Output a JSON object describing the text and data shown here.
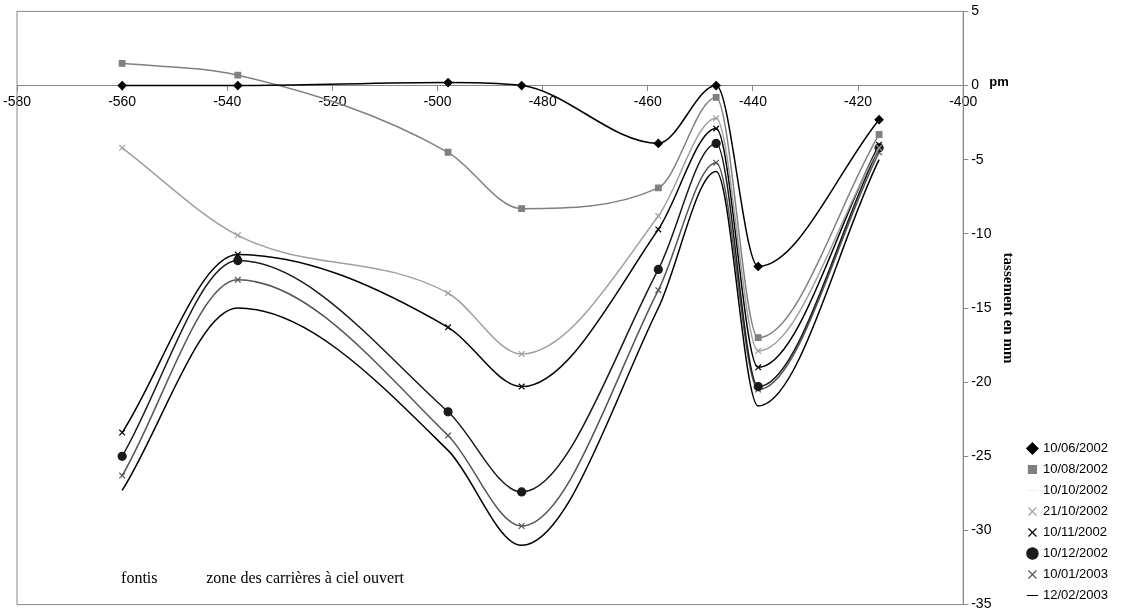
{
  "chart_data": {
    "type": "line",
    "xlabel": "pm",
    "ylabel": "tassement en mm",
    "x": [
      -560,
      -538,
      -498,
      -484,
      -458,
      -447,
      -439,
      -416
    ],
    "xlim": [
      -580,
      -400
    ],
    "xticks": [
      -580,
      -560,
      -540,
      -520,
      -500,
      -480,
      -460,
      -440,
      -420,
      -400
    ],
    "ylim": [
      -35,
      5
    ],
    "yticks": [
      -35,
      -30,
      -25,
      -20,
      -15,
      -10,
      -5,
      0,
      5
    ],
    "grid": false,
    "legend": "right",
    "line_style": "solid",
    "annotations": [
      "fontis",
      "zone des carrières à ciel ouvert"
    ],
    "series": [
      {
        "name": "10/06/2002",
        "color": "#000000",
        "marker": "diamond",
        "values": [
          0,
          0,
          0.2,
          0,
          -3.9,
          0,
          -12.2,
          -2.3
        ]
      },
      {
        "name": "10/08/2002",
        "color": "#808080",
        "marker": "square",
        "values": [
          1.5,
          0.7,
          -4.5,
          -8.3,
          -6.9,
          -0.8,
          -17,
          -3.3
        ]
      },
      {
        "name": "10/10/2002",
        "color": "#eeeeee",
        "marker": "none",
        "values": [
          null,
          null,
          null,
          null,
          null,
          null,
          null,
          null
        ]
      },
      {
        "name": "21/10/2002",
        "color": "#a0a0a0",
        "marker": "cross",
        "values": [
          -4.2,
          -10.1,
          -14,
          -18.1,
          -8.8,
          -2.2,
          -17.9,
          -4.2
        ]
      },
      {
        "name": "10/11/2002",
        "color": "#000000",
        "marker": "cross",
        "values": [
          -23.4,
          -11.4,
          -16.3,
          -20.3,
          -9.7,
          -2.9,
          -19,
          -4
        ]
      },
      {
        "name": "10/12/2002",
        "color": "#1a1a1a",
        "marker": "circle",
        "values": [
          -25,
          -11.8,
          -22,
          -27.4,
          -12.4,
          -3.9,
          -20.3,
          -4.2
        ]
      },
      {
        "name": "10/01/2003",
        "color": "#555555",
        "marker": "cross",
        "values": [
          -26.3,
          -13.1,
          -23.6,
          -29.7,
          -13.8,
          -5.2,
          -20.5,
          -4.5
        ]
      },
      {
        "name": "12/02/2003",
        "color": "#000000",
        "marker": "none",
        "values": [
          -27.3,
          -15,
          -24.6,
          -31,
          -15,
          -5.8,
          -21.6,
          -5
        ]
      }
    ]
  }
}
